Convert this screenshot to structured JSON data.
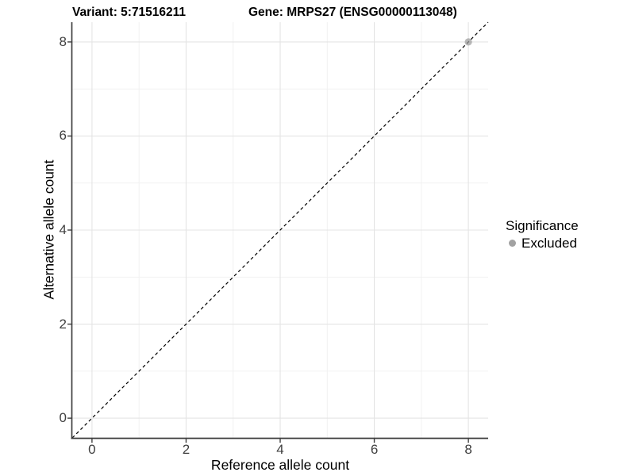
{
  "chart_data": {
    "type": "scatter",
    "title_left": "Variant: 5:71516211",
    "title_right": "Gene: MRPS27 (ENSG00000113048)",
    "xlabel": "Reference allele count",
    "ylabel": "Alternative allele count",
    "xlim": [
      -0.42,
      8.42
    ],
    "ylim": [
      -0.42,
      8.42
    ],
    "x_major_ticks": [
      0,
      2,
      4,
      6,
      8
    ],
    "y_major_ticks": [
      0,
      2,
      4,
      6,
      8
    ],
    "x_minor_ticks": [
      1,
      3,
      5,
      7
    ],
    "y_minor_ticks": [
      1,
      3,
      5,
      7
    ],
    "grid": true,
    "identity_line": {
      "style": "dashed",
      "color": "#000000",
      "from": -0.42,
      "to": 8.42
    },
    "series": [
      {
        "name": "Excluded",
        "color": "#9c9c9c",
        "opacity": 0.72,
        "points": [
          {
            "x": 8,
            "y": 8
          }
        ]
      }
    ],
    "legend": {
      "title": "Significance",
      "position": "right",
      "items": [
        {
          "label": "Excluded",
          "color": "#a2a2a2"
        }
      ]
    },
    "colors": {
      "major_grid": "#e4e4e4",
      "minor_grid": "#f0f0f0",
      "axis_line": "#3f3f3f",
      "tick_mark": "#3f3f3f",
      "tick_text": "#404040",
      "background": "#ffffff"
    }
  }
}
